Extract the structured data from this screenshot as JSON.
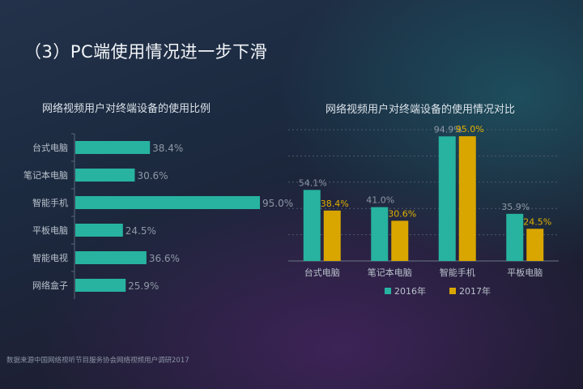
{
  "page": {
    "title": "（3）PC端使用情况进一步下滑",
    "source": "数据来源中国网络视听节目服务协会网络视频用户调研2017"
  },
  "colors": {
    "teal": "#27b3a0",
    "gold": "#d9a600",
    "label_gray": "#8e98a6",
    "label_gold": "#e0b000"
  },
  "chart_data": [
    {
      "type": "bar",
      "orientation": "horizontal",
      "title": "网络视频用户对终端设备的使用比例",
      "categories": [
        "台式电脑",
        "笔记本电脑",
        "智能手机",
        "平板电脑",
        "智能电视",
        "网络盒子"
      ],
      "values": [
        38.4,
        30.6,
        95.0,
        24.5,
        36.6,
        25.9
      ],
      "value_labels": [
        "38.4%",
        "30.6%",
        "95.0%",
        "24.5%",
        "36.6%",
        "25.9%"
      ],
      "xlim": [
        0,
        100
      ],
      "grid": false,
      "legend": "none"
    },
    {
      "type": "bar",
      "title": "网络视频用户对终端设备的使用情况对比",
      "categories": [
        "台式电脑",
        "笔记本电脑",
        "智能手机",
        "平板电脑"
      ],
      "series": [
        {
          "name": "2016年",
          "values": [
            54.1,
            41.0,
            94.9,
            35.9
          ],
          "labels": [
            "54.1%",
            "41.0%",
            "94.9%",
            "35.9%"
          ]
        },
        {
          "name": "2017年",
          "values": [
            38.4,
            30.6,
            95.0,
            24.5
          ],
          "labels": [
            "38.4%",
            "30.6%",
            "95.0%",
            "24.5%"
          ]
        }
      ],
      "ylim": [
        0,
        100
      ],
      "grid": true,
      "legend": "bottom"
    }
  ]
}
